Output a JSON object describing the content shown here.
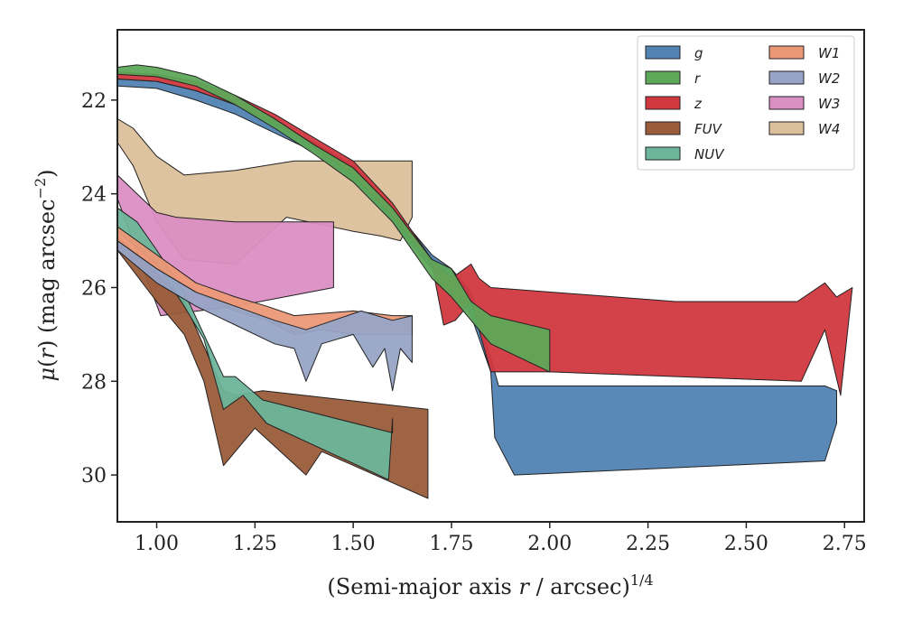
{
  "chart_data": {
    "type": "area",
    "xlabel": "(Semi-major axis r / arcsec)^1/4",
    "ylabel": "μ(r) (mag arcsec⁻²)",
    "xlim": [
      0.9,
      2.8
    ],
    "ylim": [
      31.0,
      20.5
    ],
    "y_inverted": true,
    "xticks": [
      "1.00",
      "1.25",
      "1.50",
      "1.75",
      "2.00",
      "2.25",
      "2.50",
      "2.75"
    ],
    "xtick_values": [
      1.0,
      1.25,
      1.5,
      1.75,
      2.0,
      2.25,
      2.5,
      2.75
    ],
    "yticks": [
      "22",
      "24",
      "26",
      "28",
      "30"
    ],
    "ytick_values": [
      22,
      24,
      26,
      28,
      30
    ],
    "grid": false,
    "legend_position": "top-right",
    "legend_columns": 2,
    "series": [
      {
        "name": "W4",
        "color": "#dcc09c",
        "upper": [
          [
            0.9,
            22.4
          ],
          [
            0.94,
            22.6
          ],
          [
            1.0,
            23.2
          ],
          [
            1.07,
            23.6
          ],
          [
            1.2,
            23.5
          ],
          [
            1.35,
            23.3
          ],
          [
            1.65,
            23.3
          ]
        ],
        "lower": [
          [
            0.9,
            22.9
          ],
          [
            0.94,
            23.4
          ],
          [
            1.0,
            24.6
          ],
          [
            1.07,
            25.4
          ],
          [
            1.2,
            25.5
          ],
          [
            1.33,
            24.5
          ],
          [
            1.5,
            24.8
          ],
          [
            1.57,
            24.9
          ],
          [
            1.62,
            25.0
          ],
          [
            1.65,
            24.5
          ]
        ]
      },
      {
        "name": "W3",
        "color": "#da8fc3",
        "upper": [
          [
            0.9,
            23.6
          ],
          [
            1.0,
            24.4
          ],
          [
            1.05,
            24.5
          ],
          [
            1.2,
            24.6
          ],
          [
            1.45,
            24.6
          ]
        ],
        "lower": [
          [
            0.9,
            24.1
          ],
          [
            0.97,
            25.7
          ],
          [
            1.01,
            26.6
          ],
          [
            1.2,
            26.4
          ],
          [
            1.45,
            26.0
          ]
        ]
      },
      {
        "name": "FUV",
        "color": "#9a5c3a",
        "upper": [
          [
            0.9,
            24.9
          ],
          [
            1.0,
            25.7
          ],
          [
            1.07,
            26.3
          ],
          [
            1.17,
            28.2
          ],
          [
            1.2,
            28.3
          ],
          [
            1.27,
            28.2
          ],
          [
            1.69,
            28.6
          ]
        ],
        "lower": [
          [
            0.9,
            25.2
          ],
          [
            1.0,
            26.3
          ],
          [
            1.07,
            27.0
          ],
          [
            1.12,
            28.0
          ],
          [
            1.17,
            29.8
          ],
          [
            1.25,
            29.0
          ],
          [
            1.38,
            30.0
          ],
          [
            1.42,
            29.5
          ],
          [
            1.69,
            30.5
          ]
        ]
      },
      {
        "name": "NUV",
        "color": "#6db59a",
        "upper": [
          [
            0.9,
            24.3
          ],
          [
            0.95,
            24.6
          ],
          [
            1.0,
            25.2
          ],
          [
            1.07,
            26.1
          ],
          [
            1.12,
            27.0
          ],
          [
            1.17,
            27.9
          ],
          [
            1.2,
            27.9
          ],
          [
            1.27,
            28.4
          ],
          [
            1.6,
            29.1
          ],
          [
            1.6,
            28.8
          ]
        ],
        "lower": [
          [
            0.9,
            24.8
          ],
          [
            1.0,
            25.5
          ],
          [
            1.07,
            26.4
          ],
          [
            1.12,
            27.1
          ],
          [
            1.17,
            28.6
          ],
          [
            1.22,
            28.3
          ],
          [
            1.28,
            28.9
          ],
          [
            1.59,
            30.1
          ]
        ]
      },
      {
        "name": "W1",
        "color": "#eb9877",
        "upper": [
          [
            0.9,
            24.7
          ],
          [
            1.0,
            25.3
          ],
          [
            1.1,
            25.9
          ],
          [
            1.2,
            26.2
          ],
          [
            1.28,
            26.4
          ],
          [
            1.35,
            26.6
          ],
          [
            1.5,
            26.5
          ],
          [
            1.6,
            26.6
          ],
          [
            1.65,
            26.6
          ]
        ],
        "lower": [
          [
            0.9,
            25.0
          ],
          [
            1.0,
            25.6
          ],
          [
            1.1,
            26.1
          ],
          [
            1.2,
            26.5
          ],
          [
            1.28,
            26.7
          ],
          [
            1.35,
            27.0
          ],
          [
            1.42,
            26.9
          ],
          [
            1.5,
            27.0
          ],
          [
            1.6,
            27.0
          ],
          [
            1.65,
            27.0
          ]
        ]
      },
      {
        "name": "W2",
        "color": "#97a4c6",
        "upper": [
          [
            0.9,
            25.0
          ],
          [
            1.0,
            25.6
          ],
          [
            1.1,
            26.1
          ],
          [
            1.2,
            26.4
          ],
          [
            1.3,
            26.7
          ],
          [
            1.38,
            26.9
          ],
          [
            1.45,
            26.7
          ],
          [
            1.52,
            26.5
          ],
          [
            1.6,
            26.7
          ],
          [
            1.65,
            26.6
          ]
        ],
        "lower": [
          [
            0.9,
            25.2
          ],
          [
            1.0,
            25.9
          ],
          [
            1.1,
            26.4
          ],
          [
            1.2,
            26.8
          ],
          [
            1.3,
            27.2
          ],
          [
            1.35,
            27.3
          ],
          [
            1.38,
            28.0
          ],
          [
            1.42,
            27.2
          ],
          [
            1.5,
            27.0
          ],
          [
            1.55,
            27.7
          ],
          [
            1.58,
            27.3
          ],
          [
            1.6,
            28.2
          ],
          [
            1.62,
            27.3
          ],
          [
            1.65,
            27.6
          ]
        ]
      },
      {
        "name": "g",
        "color": "#5283b3",
        "upper": [
          [
            0.9,
            21.55
          ],
          [
            1.0,
            21.6
          ],
          [
            1.1,
            21.8
          ],
          [
            1.2,
            22.1
          ],
          [
            1.3,
            22.5
          ],
          [
            1.4,
            22.9
          ],
          [
            1.5,
            23.4
          ],
          [
            1.6,
            24.3
          ],
          [
            1.7,
            25.3
          ],
          [
            1.75,
            25.6
          ],
          [
            1.8,
            26.1
          ],
          [
            1.85,
            27.5
          ],
          [
            1.87,
            28.1
          ],
          [
            2.7,
            28.1
          ],
          [
            2.73,
            28.2
          ]
        ],
        "lower": [
          [
            0.9,
            21.7
          ],
          [
            1.0,
            21.75
          ],
          [
            1.1,
            22.0
          ],
          [
            1.2,
            22.3
          ],
          [
            1.3,
            22.7
          ],
          [
            1.4,
            23.1
          ],
          [
            1.5,
            23.7
          ],
          [
            1.6,
            24.6
          ],
          [
            1.7,
            25.6
          ],
          [
            1.75,
            25.9
          ],
          [
            1.8,
            26.6
          ],
          [
            1.85,
            27.8
          ],
          [
            1.86,
            29.2
          ],
          [
            1.91,
            30.0
          ],
          [
            2.7,
            29.7
          ],
          [
            2.73,
            28.9
          ]
        ]
      },
      {
        "name": "z",
        "color": "#d1373f",
        "upper": [
          [
            0.9,
            21.4
          ],
          [
            1.0,
            21.45
          ],
          [
            1.1,
            21.6
          ],
          [
            1.2,
            21.9
          ],
          [
            1.3,
            22.3
          ],
          [
            1.4,
            22.8
          ],
          [
            1.5,
            23.3
          ],
          [
            1.6,
            24.2
          ],
          [
            1.7,
            25.4
          ],
          [
            1.75,
            25.8
          ],
          [
            1.8,
            25.5
          ],
          [
            1.82,
            25.8
          ],
          [
            1.85,
            26.0
          ],
          [
            2.32,
            26.3
          ],
          [
            2.63,
            26.3
          ],
          [
            2.7,
            25.9
          ],
          [
            2.73,
            26.2
          ],
          [
            2.77,
            26.0
          ]
        ],
        "lower": [
          [
            0.9,
            21.55
          ],
          [
            1.0,
            21.6
          ],
          [
            1.1,
            21.8
          ],
          [
            1.2,
            22.1
          ],
          [
            1.3,
            22.5
          ],
          [
            1.4,
            23.0
          ],
          [
            1.5,
            23.6
          ],
          [
            1.6,
            24.5
          ],
          [
            1.7,
            25.5
          ],
          [
            1.73,
            26.8
          ],
          [
            1.76,
            26.7
          ],
          [
            1.8,
            26.3
          ],
          [
            1.85,
            27.8
          ],
          [
            2.0,
            27.8
          ],
          [
            2.64,
            28.0
          ],
          [
            2.7,
            26.9
          ],
          [
            2.74,
            28.3
          ],
          [
            2.77,
            26.0
          ]
        ]
      },
      {
        "name": "r",
        "color": "#5ea85a",
        "upper": [
          [
            0.9,
            21.3
          ],
          [
            0.95,
            21.25
          ],
          [
            1.0,
            21.3
          ],
          [
            1.1,
            21.5
          ],
          [
            1.2,
            21.9
          ],
          [
            1.3,
            22.4
          ],
          [
            1.4,
            22.95
          ],
          [
            1.5,
            23.45
          ],
          [
            1.6,
            24.3
          ],
          [
            1.7,
            25.4
          ],
          [
            1.75,
            25.6
          ],
          [
            1.8,
            26.3
          ],
          [
            1.85,
            26.6
          ],
          [
            2.0,
            26.9
          ]
        ],
        "lower": [
          [
            0.9,
            21.45
          ],
          [
            1.0,
            21.5
          ],
          [
            1.1,
            21.7
          ],
          [
            1.2,
            22.1
          ],
          [
            1.3,
            22.6
          ],
          [
            1.4,
            23.15
          ],
          [
            1.5,
            23.75
          ],
          [
            1.6,
            24.6
          ],
          [
            1.7,
            25.8
          ],
          [
            1.75,
            26.2
          ],
          [
            1.8,
            26.7
          ],
          [
            1.85,
            27.2
          ],
          [
            2.0,
            27.8
          ]
        ]
      }
    ]
  }
}
